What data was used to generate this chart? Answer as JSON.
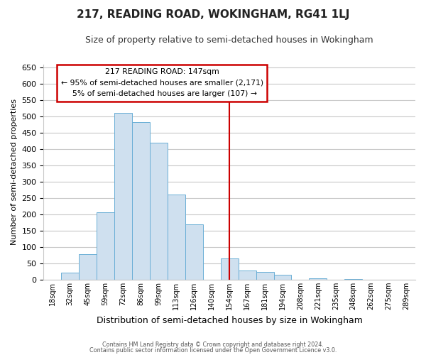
{
  "title": "217, READING ROAD, WOKINGHAM, RG41 1LJ",
  "subtitle": "Size of property relative to semi-detached houses in Wokingham",
  "xlabel": "Distribution of semi-detached houses by size in Wokingham",
  "ylabel": "Number of semi-detached properties",
  "bar_labels": [
    "18sqm",
    "32sqm",
    "45sqm",
    "59sqm",
    "72sqm",
    "86sqm",
    "99sqm",
    "113sqm",
    "126sqm",
    "140sqm",
    "154sqm",
    "167sqm",
    "181sqm",
    "194sqm",
    "208sqm",
    "221sqm",
    "235sqm",
    "248sqm",
    "262sqm",
    "275sqm",
    "289sqm"
  ],
  "bar_heights": [
    0,
    22,
    78,
    207,
    510,
    483,
    420,
    260,
    170,
    0,
    65,
    28,
    24,
    14,
    0,
    5,
    0,
    3,
    0,
    0,
    0
  ],
  "bar_color": "#cfe0ef",
  "bar_edge_color": "#6aaed6",
  "property_line_idx": 10,
  "property_sqm": 147,
  "pct_smaller": 95,
  "count_smaller": 2171,
  "pct_larger": 5,
  "count_larger": 107,
  "annotation_box_edge": "#cc0000",
  "property_line_color": "#cc0000",
  "ylim": [
    0,
    660
  ],
  "yticks": [
    0,
    50,
    100,
    150,
    200,
    250,
    300,
    350,
    400,
    450,
    500,
    550,
    600,
    650
  ],
  "footer1": "Contains HM Land Registry data © Crown copyright and database right 2024.",
  "footer2": "Contains public sector information licensed under the Open Government Licence v3.0.",
  "bg_color": "#ffffff",
  "grid_color": "#c8c8c8"
}
